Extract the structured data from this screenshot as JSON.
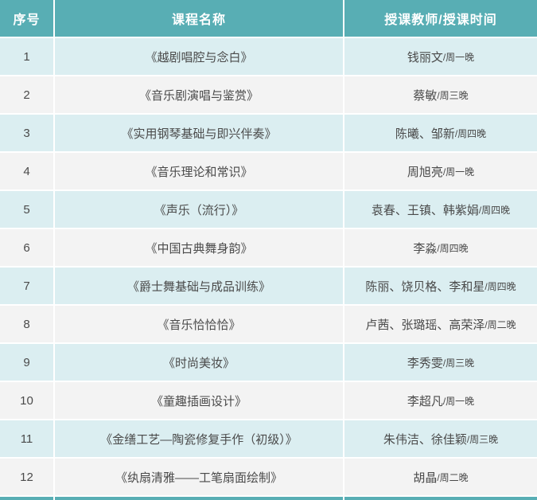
{
  "table": {
    "headers": [
      {
        "label": "序号"
      },
      {
        "label": "课程名称"
      },
      {
        "label": "授课教师/授课时间"
      }
    ],
    "rows": [
      {
        "no": "1",
        "course": "《越剧唱腔与念白》",
        "teachers": "钱丽文",
        "time": "/周一晚"
      },
      {
        "no": "2",
        "course": "《音乐剧演唱与鉴赏》",
        "teachers": "蔡敏",
        "time": "/周三晚"
      },
      {
        "no": "3",
        "course": "《实用钢琴基础与即兴伴奏》",
        "teachers": "陈曦、邹新",
        "time": "/周四晚"
      },
      {
        "no": "4",
        "course": "《音乐理论和常识》",
        "teachers": "周旭亮",
        "time": "/周一晚"
      },
      {
        "no": "5",
        "course": "《声乐（流行）》",
        "teachers": "袁春、王镇、韩紫娟",
        "time": "/周四晚"
      },
      {
        "no": "6",
        "course": "《中国古典舞身韵》",
        "teachers": "李淼",
        "time": "/周四晚"
      },
      {
        "no": "7",
        "course": "《爵士舞基础与成品训练》",
        "teachers": "陈丽、饶贝格、李和星",
        "time": "/周四晚"
      },
      {
        "no": "8",
        "course": "《音乐恰恰恰》",
        "teachers": "卢茜、张璐瑶、高荣泽",
        "time": "/周二晚"
      },
      {
        "no": "9",
        "course": "《时尚美妆》",
        "teachers": "李秀雯",
        "time": "/周三晚"
      },
      {
        "no": "10",
        "course": "《童趣插画设计》",
        "teachers": "李超凡",
        "time": "/周一晚"
      },
      {
        "no": "11",
        "course": "《金缮工艺—陶瓷修复手作（初级）》",
        "teachers": "朱伟洁、徐佳颖",
        "time": "/周三晚"
      },
      {
        "no": "12",
        "course": "《纨扇清雅——工笔扇面绘制》",
        "teachers": "胡晶",
        "time": "/周二晚"
      }
    ]
  },
  "colors": {
    "header_bg": "#58AEB4",
    "row_cyan": "#DBEEF1",
    "row_gray": "#F3F3F3",
    "header_text": "#FFFFFF",
    "body_text": "#4A4A4A"
  }
}
